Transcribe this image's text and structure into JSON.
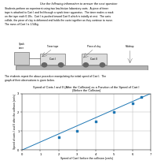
{
  "chart_data": {
    "type": "scatter",
    "header": "Use the following information to answer the next question",
    "description": "Students perform an experiment using two low-friction laboratory carts.  A piece of timer\ntape is attached to Cart I and fed through a spark timer apparatus.  The timer makes a mark\non the tape each 0.10s.  Cart I is pushed toward Cart II which is initially at rest.  The carts\ncollide, the piece of clay is deformed and holds the carts together as they continue to move.\nThe mass of Cart I is 1.54kg.",
    "diagram_labels": [
      "Spark\ntimer",
      "Timer tape",
      "Piece of clay",
      "Tabletop",
      "Cart I",
      "Cart II"
    ],
    "repeat_text": "The students repeat the above procedure manipulating the initial speed of Cart I.  The\ngraph of their observations is given below.",
    "title": "Speed of Carts I and II (After the Collision) as a Function of the Speed of Cart I",
    "subtitle": "(Before the Collision)",
    "xlabel": "Speed of Cart I before the collision (cm/s)",
    "ylabel": "Speed of carts I and II after the collision (cm/s)",
    "xlim": [
      0,
      7
    ],
    "ylim": [
      0,
      3
    ],
    "xticks": [
      0,
      1,
      2,
      3,
      4,
      5,
      6,
      7
    ],
    "yticks": [
      0,
      1,
      2,
      3
    ],
    "grid": true,
    "series": [
      {
        "type": "scatter",
        "marker": "s",
        "x": [
          2,
          3,
          4,
          5,
          6,
          6.5
        ],
        "values": [
          0.7,
          1.0,
          1.5,
          2.0,
          2.5,
          2.8
        ]
      },
      {
        "type": "line",
        "x": [
          0,
          7
        ],
        "values": [
          0,
          3
        ]
      }
    ]
  }
}
